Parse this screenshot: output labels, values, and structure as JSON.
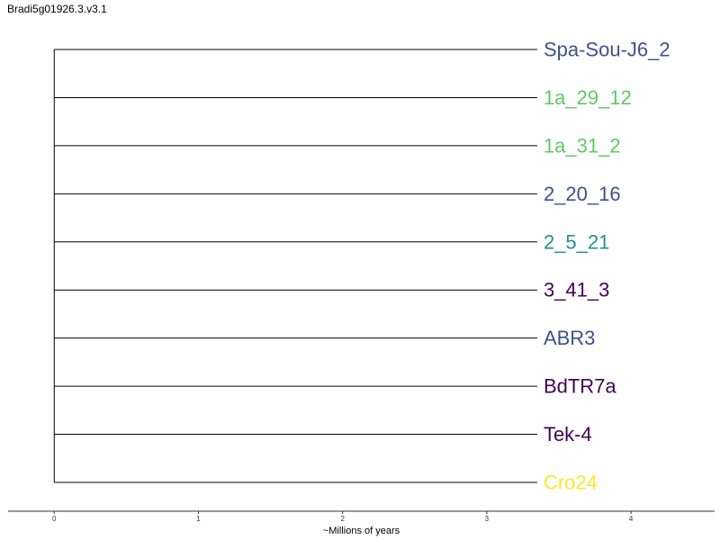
{
  "title": "Bradi5g01926.3.v3.1",
  "chart_data": {
    "type": "dendrogram",
    "xlabel": "~Millions of years",
    "x_ticks": [
      0,
      1,
      2,
      3,
      4
    ],
    "xlim": [
      -0.32,
      4.58
    ],
    "root_x": 0,
    "leaf_x": 3.35,
    "leaves": [
      {
        "label": "Spa-Sou-J6_2",
        "color": "#3b528b"
      },
      {
        "label": "1a_29_12",
        "color": "#5ec962"
      },
      {
        "label": "1a_31_2",
        "color": "#5ec962"
      },
      {
        "label": "2_20_16",
        "color": "#3b528b"
      },
      {
        "label": "2_5_21",
        "color": "#21918c"
      },
      {
        "label": "3_41_3",
        "color": "#440154"
      },
      {
        "label": "ABR3",
        "color": "#3b528b"
      },
      {
        "label": "BdTR7a",
        "color": "#440154"
      },
      {
        "label": "Tek-4",
        "color": "#440154"
      },
      {
        "label": "Cro24",
        "color": "#fde725"
      }
    ]
  }
}
